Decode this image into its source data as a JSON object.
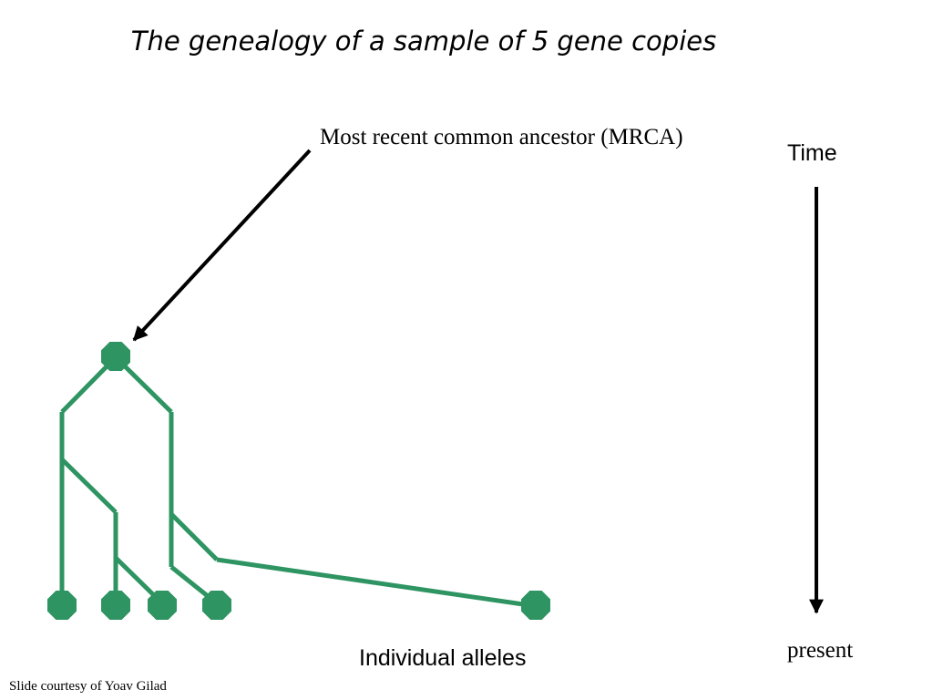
{
  "title": "The genealogy of a sample of 5 gene copies",
  "labels": {
    "mrca": "Most recent common ancestor (MRCA)",
    "time": "Time",
    "present": "present",
    "alleles": "Individual alleles"
  },
  "credit": "Slide courtesy of Yoav Gilad",
  "colors": {
    "tree": "#2e9462",
    "arrow": "#000000",
    "background": "#ffffff"
  },
  "tree": {
    "mrca_node": "mrca",
    "leaf_count": 5
  }
}
